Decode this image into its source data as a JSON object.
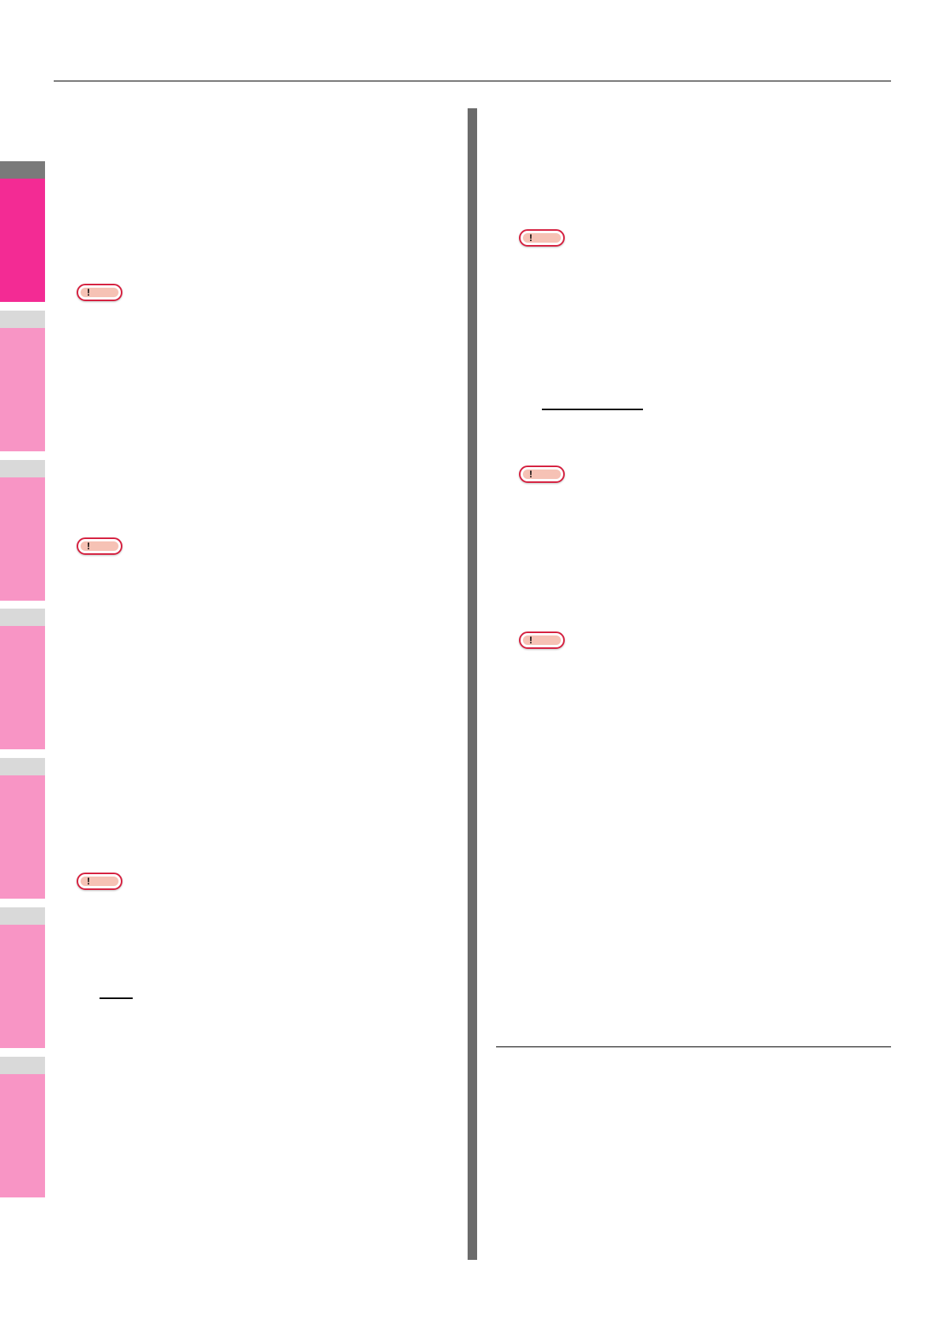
{
  "header": {
    "rule": true
  },
  "sidebar": {
    "tabs": [
      {
        "id": 1,
        "active": true
      },
      {
        "id": 2,
        "active": false
      },
      {
        "id": 3,
        "active": false
      },
      {
        "id": 4,
        "active": false
      },
      {
        "id": 5,
        "active": false
      },
      {
        "id": 6,
        "active": false
      },
      {
        "id": 7,
        "active": false
      }
    ]
  },
  "notes": {
    "mark": "!"
  },
  "colors": {
    "active_tab": "#f32b94",
    "inactive_tab": "#f895c5",
    "tab_cap": "#d9d9d9",
    "active_cap": "#7a7a7a",
    "divider": "#6b6b6b",
    "note_border": "#d6203f",
    "note_fill": "#f6c2b5"
  }
}
